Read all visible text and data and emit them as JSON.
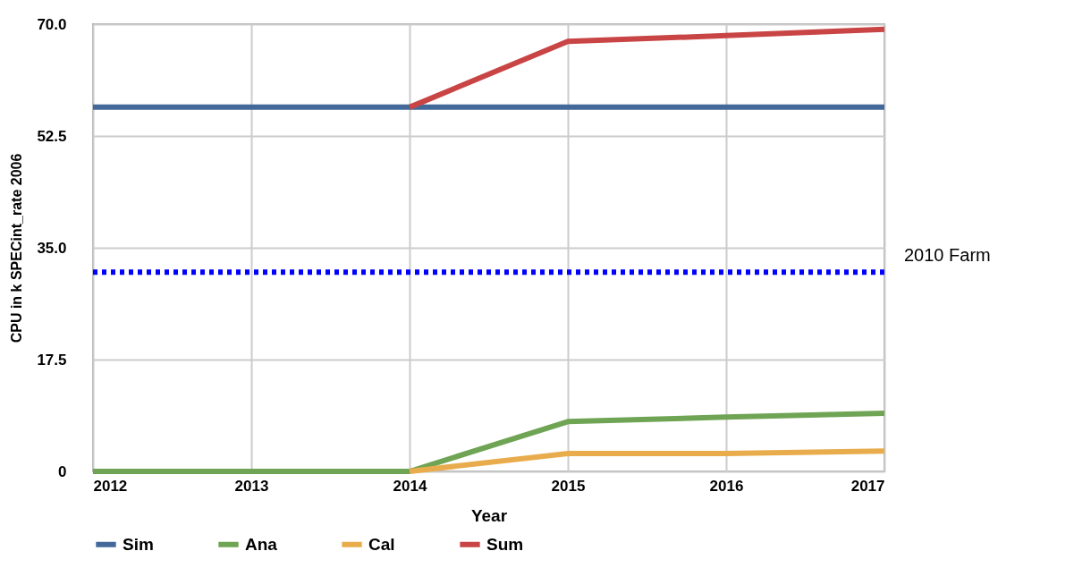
{
  "chart_data": {
    "type": "line",
    "xlabel": "Year",
    "ylabel": "CPU in k SPECint_rate 2006",
    "categories": [
      "2012",
      "2013",
      "2014",
      "2015",
      "2016",
      "2017"
    ],
    "series": [
      {
        "name": "Sim",
        "color": "#43699b",
        "values": [
          57,
          57,
          57,
          57,
          57,
          57
        ]
      },
      {
        "name": "Ana",
        "color": "#6fa454",
        "values": [
          0,
          0,
          0,
          7.8,
          8.5,
          9.1
        ]
      },
      {
        "name": "Cal",
        "color": "#e9ac4c",
        "values": [
          null,
          null,
          0,
          2.8,
          2.8,
          3.2
        ]
      },
      {
        "name": "Sum",
        "color": "#c94444",
        "values": [
          null,
          null,
          57,
          67.3,
          68.2,
          69.2
        ]
      }
    ],
    "ylim": [
      0,
      70
    ],
    "yticks": [
      0,
      {
        "value": 17.5,
        "label": "17.5"
      },
      {
        "value": 35,
        "label": "35.0"
      },
      {
        "value": 52.5,
        "label": "52.5"
      },
      {
        "value": 70,
        "label": "70.0"
      }
    ],
    "grid": true,
    "legend": "bottom",
    "line_style": "solid",
    "ref_lines": [
      {
        "axis": "y",
        "value": 31.2,
        "label": "2010 Farm",
        "color": "#0000ff",
        "line_style": "dotted"
      }
    ]
  }
}
